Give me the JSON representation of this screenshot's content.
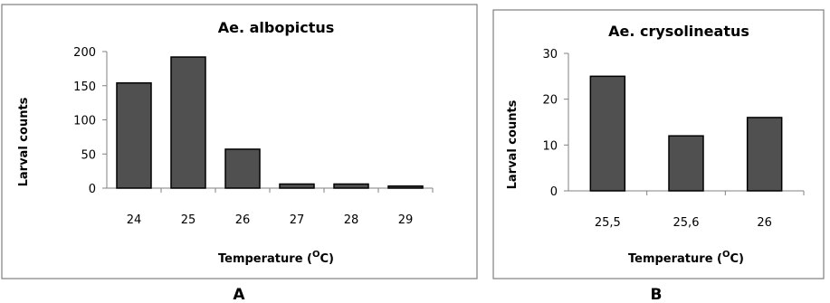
{
  "chart_data": [
    {
      "type": "bar",
      "title": "Ae. albopictus",
      "xlabel": "Temperature (OC)",
      "xlabel_parts": {
        "prefix": "Temperature (",
        "sup": "O",
        "suffix": "C)"
      },
      "ylabel": "Larval counts",
      "categories": [
        "24",
        "25",
        "26",
        "27",
        "28",
        "29"
      ],
      "values": [
        154,
        192,
        57,
        6,
        6,
        3
      ],
      "ylim": [
        0,
        200
      ],
      "yticks": [
        0,
        50,
        100,
        150,
        200
      ],
      "grid": false,
      "legend": "none",
      "bar_color": "#505050",
      "panel_label": "A"
    },
    {
      "type": "bar",
      "title": "Ae. crysolineatus",
      "xlabel": "Temperature (OC)",
      "xlabel_parts": {
        "prefix": "Temperature (",
        "sup": "O",
        "suffix": "C)"
      },
      "ylabel": "Larval counts",
      "categories": [
        "25,5",
        "25,6",
        "26"
      ],
      "values": [
        25,
        12,
        16
      ],
      "ylim": [
        0,
        30
      ],
      "yticks": [
        0,
        10,
        20,
        30
      ],
      "grid": false,
      "legend": "none",
      "bar_color": "#505050",
      "panel_label": "B"
    }
  ]
}
